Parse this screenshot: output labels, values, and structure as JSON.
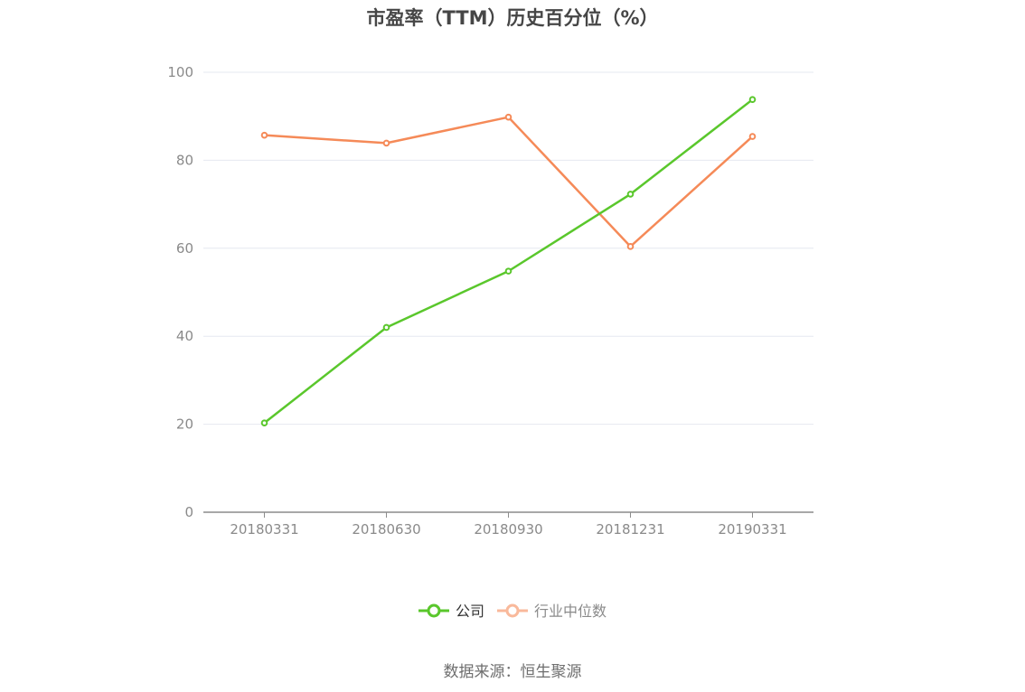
{
  "chart_data": {
    "type": "line",
    "title": "市盈率（TTM）历史百分位（%）",
    "categories": [
      "20180331",
      "20180630",
      "20180930",
      "20181231",
      "20190331"
    ],
    "series": [
      {
        "name": "公司",
        "color": "#5ac72c",
        "values": [
          20.3,
          42.0,
          54.8,
          72.3,
          93.8
        ]
      },
      {
        "name": "行业中位数",
        "color": "#f58a58",
        "legend_color": "#f9b99b",
        "values": [
          85.7,
          83.9,
          89.8,
          60.4,
          85.4
        ]
      }
    ],
    "ylim": [
      0,
      100
    ],
    "yticks": [
      "0",
      "20",
      "40",
      "60",
      "80",
      "100"
    ],
    "grid": true,
    "legend_position": "bottom-center",
    "xlabel": "",
    "ylabel": ""
  },
  "source": "数据来源：恒生聚源"
}
